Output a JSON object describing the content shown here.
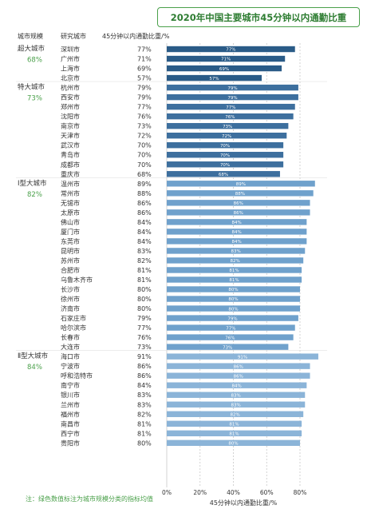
{
  "title": "2020年中国主要城市45分钟以内通勤比重",
  "headers": {
    "tier": "城市规模",
    "city": "研究城市",
    "value": "45分钟以内通勤比重/%"
  },
  "footnote": "注：绿色数值标注为城市规模分类的指标均值",
  "colors": {
    "super": "#2a5b87",
    "special": "#3d6f9e",
    "type1": "#6fa1cc",
    "type2": "#8bb4d8",
    "tier_avg": "#4aa04a",
    "grid": "#c8c8c8"
  },
  "chart_data": {
    "type": "bar",
    "orientation": "horizontal",
    "xlabel": "45分钟以内通勤比重/%",
    "xlim": [
      0,
      100
    ],
    "xticks": [
      "0%",
      "20%",
      "40%",
      "60%",
      "80%"
    ],
    "groups": [
      {
        "name": "超大城市",
        "avg": "68%",
        "color_key": "super",
        "cities": [
          "深圳市",
          "广州市",
          "上海市",
          "北京市"
        ],
        "values": [
          77,
          71,
          69,
          57
        ]
      },
      {
        "name": "特大城市",
        "avg": "73%",
        "color_key": "special",
        "cities": [
          "杭州市",
          "西安市",
          "郑州市",
          "沈阳市",
          "南京市",
          "天津市",
          "武汉市",
          "青岛市",
          "成都市",
          "重庆市"
        ],
        "values": [
          79,
          79,
          77,
          76,
          73,
          72,
          70,
          70,
          70,
          68
        ]
      },
      {
        "name": "Ⅰ型大城市",
        "avg": "82%",
        "color_key": "type1",
        "cities": [
          "温州市",
          "常州市",
          "无锡市",
          "太原市",
          "佛山市",
          "厦门市",
          "东莞市",
          "昆明市",
          "苏州市",
          "合肥市",
          "乌鲁木齐市",
          "长沙市",
          "徐州市",
          "济南市",
          "石家庄市",
          "哈尔滨市",
          "长春市",
          "大连市"
        ],
        "values": [
          89,
          88,
          86,
          86,
          84,
          84,
          84,
          83,
          82,
          81,
          81,
          80,
          80,
          80,
          79,
          77,
          76,
          73
        ]
      },
      {
        "name": "Ⅱ型大城市",
        "avg": "84%",
        "color_key": "type2",
        "cities": [
          "海口市",
          "宁波市",
          "呼和浩特市",
          "南宁市",
          "银川市",
          "兰州市",
          "福州市",
          "南昌市",
          "西宁市",
          "贵阳市"
        ],
        "values": [
          91,
          86,
          86,
          84,
          83,
          83,
          82,
          81,
          81,
          80
        ]
      }
    ]
  }
}
